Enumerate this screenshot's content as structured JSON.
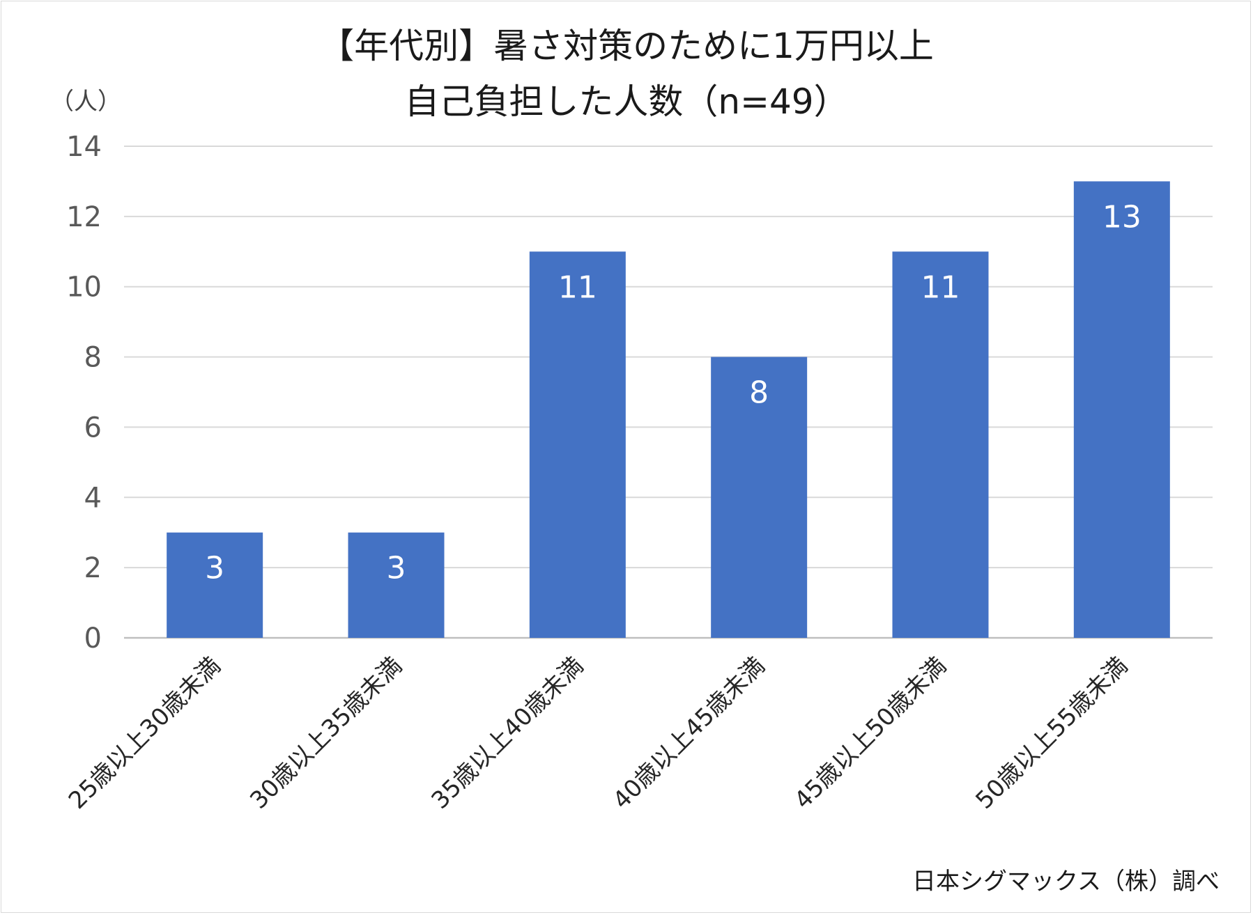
{
  "chart_data": {
    "type": "bar",
    "title": [
      "【年代別】暑さ対策のために1万円以上",
      "自己負担した人数（n=49）"
    ],
    "ylabel": "（人）",
    "xlabel": "",
    "categories": [
      "25歳以上30歳未満",
      "30歳以上35歳未満",
      "35歳以上40歳未満",
      "40歳以上45歳未満",
      "45歳以上50歳未満",
      "50歳以上55歳未満"
    ],
    "values": [
      3,
      3,
      11,
      8,
      11,
      13
    ],
    "ylim": [
      0,
      14
    ],
    "yticks": [
      0,
      2,
      4,
      6,
      8,
      10,
      12,
      14
    ],
    "grid": true,
    "data_labels": true,
    "bar_color": "#4472c4",
    "source": "日本シグマックス（株）調べ"
  }
}
